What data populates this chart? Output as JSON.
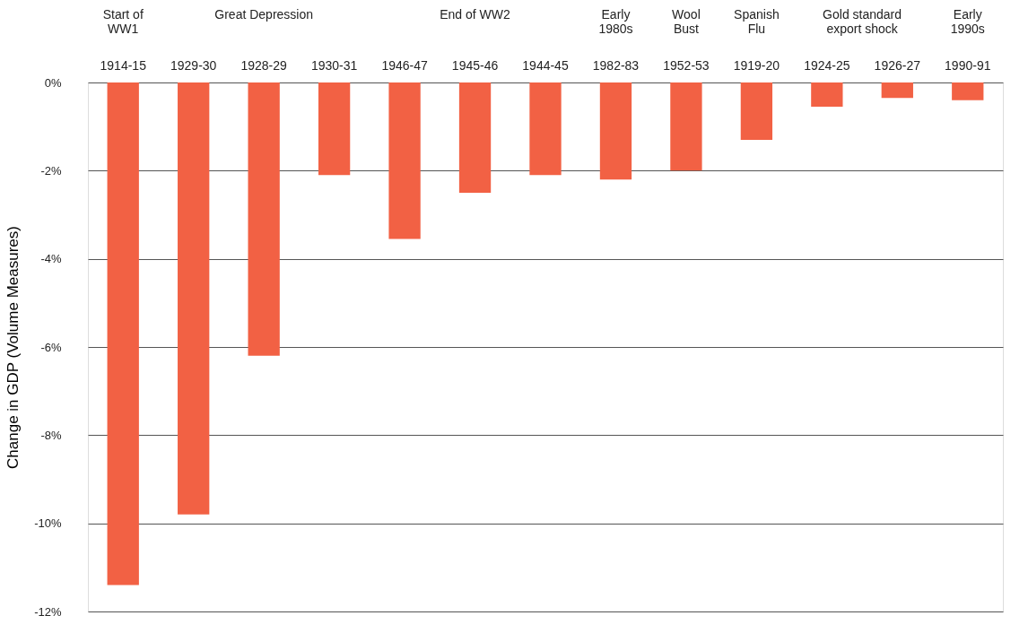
{
  "chart_data": {
    "type": "bar",
    "ylabel": "Change in GDP (Volume Measures)",
    "categories": [
      "1914-15",
      "1929-30",
      "1928-29",
      "1930-31",
      "1946-47",
      "1945-46",
      "1944-45",
      "1982-83",
      "1952-53",
      "1919-20",
      "1924-25",
      "1926-27",
      "1990-91"
    ],
    "values": [
      -11.4,
      -9.8,
      -6.2,
      -2.1,
      -3.55,
      -2.5,
      -2.1,
      -2.2,
      -2.0,
      -1.3,
      -0.55,
      -0.35,
      -0.4
    ],
    "color": "#f26144",
    "ylim": [
      -12,
      0
    ],
    "yticks": [
      {
        "value": 0,
        "label": "0%"
      },
      {
        "value": -2,
        "label": "-2%"
      },
      {
        "value": -4,
        "label": "-4%"
      },
      {
        "value": -6,
        "label": "-6%"
      },
      {
        "value": -8,
        "label": "-8%"
      },
      {
        "value": -10,
        "label": "-10%"
      },
      {
        "value": -12,
        "label": "-12%"
      }
    ],
    "grid": "y",
    "annotations": [
      "Start of\nWW1",
      "Great Depression",
      "End of WW2",
      "Early\n1980s",
      "Wool\nBust",
      "Spanish\nFlu",
      "Gold standard\nexport shock",
      "Early\n1990s"
    ]
  }
}
